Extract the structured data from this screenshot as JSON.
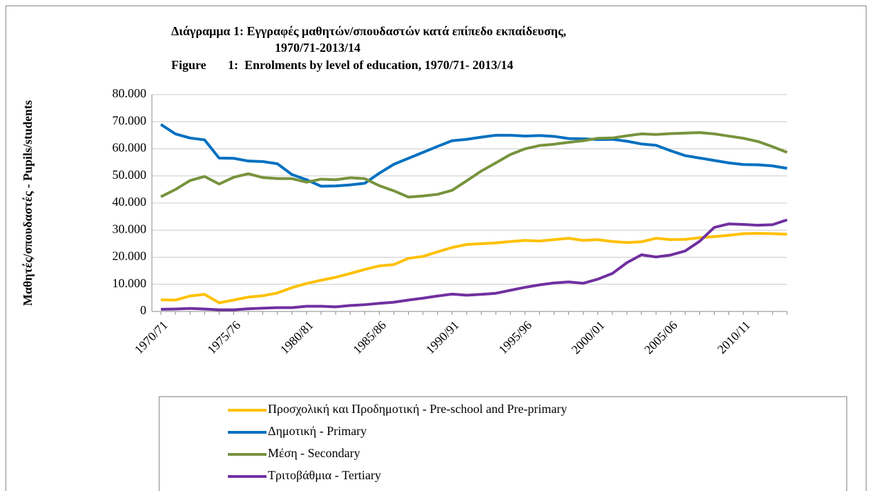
{
  "chart_data": {
    "type": "line",
    "title_lines": [
      "Διάγραμμα 1:   Εγγραφές μαθητών/σπουδαστών κατά επίπεδο εκπαίδευσης,",
      "1970/71-2013/14",
      "Figure       1:  Enrolments by level of education, 1970/71- 2013/14"
    ],
    "y_label": "Μαθητές/σπουδαστές - Pupils/students",
    "categories": [
      "1970/71",
      null,
      null,
      null,
      null,
      "1975/76",
      null,
      null,
      null,
      null,
      "1980/81",
      null,
      null,
      null,
      null,
      "1985/86",
      null,
      null,
      null,
      null,
      "1990/91",
      null,
      null,
      null,
      null,
      "1995/96",
      null,
      null,
      null,
      null,
      "2000/01",
      null,
      null,
      null,
      null,
      "2005/06",
      null,
      null,
      null,
      null,
      "2010/11",
      null,
      null,
      null
    ],
    "ylim": [
      0,
      80000
    ],
    "yticks": [
      0,
      {
        "value": 10000,
        "label": "10.000"
      },
      {
        "value": 20000,
        "label": "20.000"
      },
      {
        "value": 30000,
        "label": "30.000"
      },
      {
        "value": 40000,
        "label": "40.000"
      },
      {
        "value": 50000,
        "label": "50.000"
      },
      {
        "value": 60000,
        "label": "60.000"
      },
      {
        "value": 70000,
        "label": "70.000"
      },
      {
        "value": 80000,
        "label": "80.000"
      }
    ],
    "grid": true,
    "series": [
      {
        "name": "Προσχολική και Προδημοτική - Pre-school and Pre-primary",
        "color": "#FFC000",
        "values": [
          4300,
          4200,
          5700,
          6300,
          3200,
          4200,
          5300,
          5800,
          6800,
          8800,
          10300,
          11500,
          12600,
          14000,
          15500,
          16800,
          17300,
          19600,
          20300,
          22000,
          23600,
          24700,
          25000,
          25300,
          25800,
          26200,
          26000,
          26500,
          27000,
          26200,
          26500,
          25800,
          25400,
          25700,
          27000,
          26500,
          26600,
          27200,
          27600,
          28100,
          28700,
          28800,
          28700,
          28500
        ]
      },
      {
        "name": "Δημοτική - Primary",
        "color": "#0070C0",
        "values": [
          69000,
          65500,
          64000,
          63300,
          56600,
          56500,
          55500,
          55300,
          54500,
          50500,
          48600,
          46200,
          46300,
          46700,
          47300,
          51000,
          54300,
          56500,
          58700,
          60900,
          63000,
          63500,
          64300,
          65000,
          65000,
          64700,
          64900,
          64600,
          63800,
          63700,
          63400,
          63500,
          62800,
          61800,
          61300,
          59300,
          57500,
          56600,
          55700,
          54800,
          54200,
          54100,
          53700,
          52800
        ]
      },
      {
        "name": "Μέση - Secondary",
        "color": "#77933C",
        "values": [
          42300,
          45000,
          48300,
          49800,
          47000,
          49500,
          50800,
          49400,
          49000,
          49000,
          47700,
          48800,
          48600,
          49300,
          49000,
          46400,
          44500,
          42200,
          42600,
          43200,
          44700,
          48200,
          51800,
          54800,
          57900,
          60000,
          61200,
          61700,
          62400,
          63000,
          63900,
          64000,
          64800,
          65500,
          65300,
          65600,
          65800,
          66000,
          65500,
          64700,
          63900,
          62700,
          60800,
          58700
        ]
      },
      {
        "name": "Τριτοβάθμια - Tertiary",
        "color": "#7030A0",
        "values": [
          800,
          900,
          1100,
          900,
          600,
          600,
          1000,
          1200,
          1400,
          1400,
          1900,
          1900,
          1700,
          2200,
          2500,
          3000,
          3400,
          4200,
          4900,
          5700,
          6400,
          6000,
          6300,
          6700,
          7800,
          8900,
          9800,
          10500,
          10900,
          10400,
          11900,
          14000,
          18000,
          20900,
          20100,
          20800,
          22300,
          25900,
          31000,
          32300,
          32100,
          31800,
          32000,
          33800
        ]
      }
    ]
  }
}
